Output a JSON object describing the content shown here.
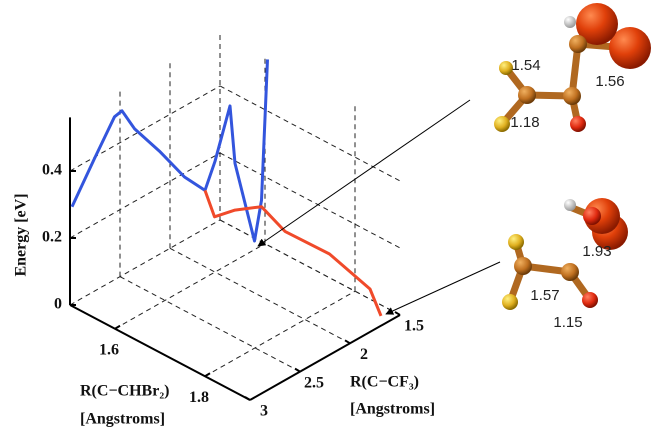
{
  "chart_data": {
    "type": "line3d",
    "zlabel": "Energy [eV]",
    "xlabel": "R(C−CHBr₂)",
    "xunit": "[Angstroms]",
    "ylabel": "R(C−CF₃)",
    "yunit": "[Angstroms]",
    "xlim": [
      1.5,
      1.9
    ],
    "ylim": [
      1.5,
      3
    ],
    "zlim": [
      0,
      0.56
    ],
    "xticks": [
      1.6,
      1.8
    ],
    "yticks": [
      1.5,
      2,
      2.5,
      3
    ],
    "zticks": [
      0,
      0.2,
      0.4
    ],
    "grid": true,
    "series": [
      {
        "color": "#3355dd",
        "x": [
          1.5,
          1.53,
          1.55,
          1.56,
          1.57,
          1.59,
          1.61,
          1.62,
          1.62,
          1.62,
          1.62,
          1.63,
          1.63,
          1.63
        ],
        "y": [
          2.98,
          2.89,
          2.78,
          2.75,
          2.67,
          2.51,
          2.35,
          2.19,
          2.09,
          1.94,
          1.89,
          1.74,
          1.67,
          1.61
        ],
        "z": [
          0.29,
          0.44,
          0.56,
          0.58,
          0.52,
          0.44,
          0.35,
          0.29,
          0.36,
          0.5,
          0.32,
          0.07,
          0.18,
          0.59
        ]
      },
      {
        "color": "#f04a2a",
        "x": [
          1.62,
          1.63,
          1.64,
          1.65,
          1.7,
          1.77,
          1.84,
          1.88
        ],
        "y": [
          2.19,
          2.14,
          1.98,
          1.76,
          1.75,
          1.62,
          1.53,
          1.6
        ],
        "z": [
          0.29,
          0.21,
          0.21,
          0.19,
          0.15,
          0.11,
          0.04,
          0
        ]
      }
    ]
  },
  "molecules": [
    {
      "bond_lengths": [
        1.54,
        1.56,
        1.18
      ]
    },
    {
      "bond_lengths": [
        1.93,
        1.57,
        1.15
      ]
    }
  ]
}
